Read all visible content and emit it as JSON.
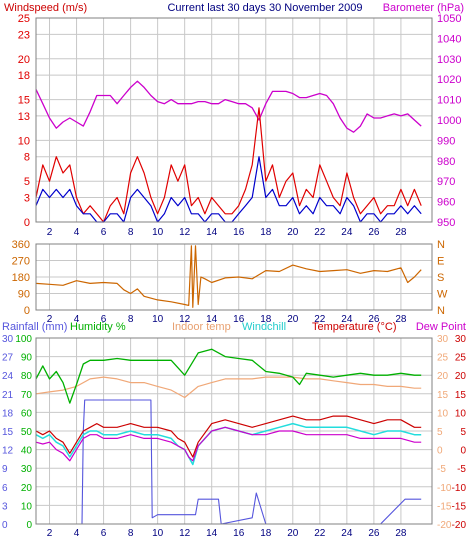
{
  "header": {
    "left_title": "Windspeed (m/s)",
    "center_title": "Current last 30 days 30 November 2009",
    "right_title": "Barometer (hPa)"
  },
  "legend_bottom": {
    "rainfall": "Rainfall (mm)",
    "humidity": "Humidity %",
    "indoor": "Indoor temp",
    "windchill": "Windchill",
    "temperature": "Temperature (°C)",
    "dewpoint": "Dew Point"
  },
  "colors": {
    "windspeed_max": "#e00000",
    "windspeed_avg": "#0000cc",
    "barometer": "#cc00cc",
    "wind_direction": "#cc6600",
    "rainfall": "#5555dd",
    "humidity": "#00b000",
    "indoor_temp": "#f0a878",
    "windchill": "#22dddd",
    "temperature": "#cc0000",
    "dew_point": "#cc00cc",
    "grid": "#c8c8c8",
    "axis_text_orange": "#cc6600"
  },
  "chart_data": [
    {
      "type": "line",
      "xlim": [
        1,
        30.3
      ],
      "x_ticks": [
        2,
        4,
        6,
        8,
        10,
        12,
        14,
        16,
        18,
        20,
        22,
        24,
        26,
        28
      ],
      "left_axis": {
        "label": "Windspeed (m/s)",
        "ticks": [
          0,
          3,
          5,
          8,
          10,
          13,
          15,
          18,
          20,
          23,
          25
        ],
        "ylim": [
          0,
          25
        ]
      },
      "right_axis": {
        "label": "Barometer (hPa)",
        "ticks": [
          950,
          960,
          970,
          980,
          990,
          1000,
          1010,
          1020,
          1030,
          1040,
          1050
        ],
        "ylim": [
          950,
          1050
        ]
      },
      "series": [
        {
          "name": "Barometer (hPa)",
          "axis": "right",
          "x": [
            1,
            1.5,
            2,
            2.5,
            3,
            3.5,
            4,
            4.5,
            5,
            5.5,
            6,
            6.5,
            7,
            7.5,
            8,
            8.5,
            9,
            9.5,
            10,
            10.5,
            11,
            11.5,
            12,
            12.5,
            13,
            13.5,
            14,
            14.5,
            15,
            15.5,
            16,
            16.5,
            17,
            17.5,
            18,
            18.5,
            19,
            19.5,
            20,
            20.5,
            21,
            21.5,
            22,
            22.5,
            23,
            23.5,
            24,
            24.5,
            25,
            25.5,
            26,
            26.5,
            27,
            27.5,
            28,
            28.5,
            29,
            29.5
          ],
          "values": [
            1015,
            1008,
            1001,
            996,
            999,
            1001,
            999,
            997,
            1004,
            1012,
            1012,
            1012,
            1008,
            1012,
            1016,
            1019,
            1016,
            1012,
            1009,
            1008,
            1010,
            1008,
            1008,
            1008,
            1009,
            1009,
            1008,
            1008,
            1010,
            1009,
            1008,
            1008,
            1006,
            1000,
            1008,
            1014,
            1014,
            1014,
            1013,
            1011,
            1011,
            1012,
            1013,
            1012,
            1008,
            1001,
            996,
            994,
            997,
            1003,
            1001,
            1001,
            1002,
            1003,
            1002,
            1003,
            1000,
            997
          ]
        },
        {
          "name": "Windspeed max",
          "axis": "left",
          "x": [
            1,
            1.5,
            2,
            2.5,
            3,
            3.5,
            4,
            4.5,
            5,
            5.5,
            6,
            6.5,
            7,
            7.5,
            8,
            8.5,
            9,
            9.5,
            10,
            10.5,
            11,
            11.5,
            12,
            12.5,
            13,
            13.5,
            14,
            14.5,
            15,
            15.5,
            16,
            16.5,
            17,
            17.5,
            18,
            18.5,
            19,
            19.5,
            20,
            20.5,
            21,
            21.5,
            22,
            22.5,
            23,
            23.5,
            24,
            24.5,
            25,
            25.5,
            26,
            26.5,
            27,
            27.5,
            28,
            28.5,
            29,
            29.5
          ],
          "values": [
            3,
            7,
            5,
            8,
            6,
            7,
            3,
            1,
            2,
            1,
            0,
            2,
            3,
            1,
            6,
            8,
            6,
            3,
            1,
            3,
            7,
            5,
            7,
            2,
            3,
            1,
            3,
            2,
            1,
            1,
            2,
            4,
            7,
            14,
            5,
            7,
            3,
            5,
            6,
            2,
            4,
            3,
            7,
            5,
            3,
            2,
            6,
            3,
            1,
            2,
            3,
            1,
            2,
            2,
            4,
            2,
            4,
            2
          ]
        },
        {
          "name": "Windspeed avg",
          "axis": "left",
          "x": [
            1,
            1.5,
            2,
            2.5,
            3,
            3.5,
            4,
            4.5,
            5,
            5.5,
            6,
            6.5,
            7,
            7.5,
            8,
            8.5,
            9,
            9.5,
            10,
            10.5,
            11,
            11.5,
            12,
            12.5,
            13,
            13.5,
            14,
            14.5,
            15,
            15.5,
            16,
            16.5,
            17,
            17.5,
            18,
            18.5,
            19,
            19.5,
            20,
            20.5,
            21,
            21.5,
            22,
            22.5,
            23,
            23.5,
            24,
            24.5,
            25,
            25.5,
            26,
            26.5,
            27,
            27.5,
            28,
            28.5,
            29,
            29.5
          ],
          "values": [
            2,
            4,
            3,
            4,
            3,
            4,
            2,
            1,
            1,
            0,
            0,
            1,
            1,
            0,
            3,
            4,
            3,
            2,
            0,
            1,
            3,
            2,
            3,
            1,
            1,
            0,
            1,
            1,
            0,
            0,
            1,
            2,
            3,
            8,
            3,
            4,
            2,
            2,
            3,
            1,
            2,
            1,
            3,
            2,
            2,
            1,
            3,
            2,
            0,
            1,
            1,
            0,
            1,
            1,
            2,
            1,
            2,
            1
          ]
        }
      ]
    },
    {
      "type": "line",
      "xlim": [
        1,
        30.3
      ],
      "x_ticks": [
        2,
        4,
        6,
        8,
        10,
        12,
        14,
        16,
        18,
        20,
        22,
        24,
        26,
        28
      ],
      "left_axis": {
        "ticks": [
          0,
          90,
          180,
          270,
          360
        ],
        "ylim": [
          0,
          360
        ]
      },
      "right_axis": {
        "ticks": [
          "N",
          "W",
          "S",
          "E",
          "N"
        ]
      },
      "series": [
        {
          "name": "Wind direction",
          "x": [
            1,
            2,
            3,
            4,
            5,
            6,
            7,
            7.5,
            8,
            8.5,
            9,
            10,
            11,
            12,
            12.3,
            12.5,
            12.6,
            12.8,
            13,
            13.2,
            13.5,
            14,
            15,
            16,
            17,
            18,
            19,
            20,
            21,
            22,
            23,
            24,
            25,
            26,
            27,
            28,
            28.5,
            29,
            29.5
          ],
          "values": [
            145,
            140,
            135,
            160,
            145,
            150,
            145,
            110,
            90,
            115,
            75,
            55,
            45,
            30,
            25,
            350,
            15,
            350,
            30,
            180,
            170,
            150,
            175,
            180,
            170,
            215,
            210,
            245,
            225,
            210,
            215,
            220,
            200,
            215,
            210,
            230,
            150,
            180,
            220
          ]
        }
      ]
    },
    {
      "type": "line",
      "xlim": [
        1,
        30.3
      ],
      "x_ticks": [
        2,
        4,
        6,
        8,
        10,
        12,
        14,
        16,
        18,
        20,
        22,
        24,
        26,
        28
      ],
      "rain_axis": {
        "label": "Rainfall (mm)",
        "ticks": [
          0,
          3,
          6,
          9,
          12,
          15,
          18,
          21,
          24,
          27,
          30
        ],
        "ylim": [
          0,
          30
        ]
      },
      "humidity_axis": {
        "label": "Humidity %",
        "ticks": [
          0,
          10,
          20,
          30,
          40,
          50,
          60,
          70,
          80,
          90,
          100
        ],
        "ylim": [
          0,
          100
        ]
      },
      "temp_axis": {
        "label": "Temperature (°C)",
        "ticks": [
          -20,
          -15,
          -10,
          -5,
          0,
          5,
          10,
          15,
          20,
          25,
          30
        ],
        "ylim": [
          -20,
          30
        ]
      },
      "series": [
        {
          "name": "Rainfall (mm)",
          "axis": "rain",
          "x": [
            1,
            4.4,
            4.5,
            4.6,
            5,
            9.5,
            9.6,
            10,
            11,
            11.3,
            12,
            12.8,
            13,
            14.5,
            14.7,
            17,
            17.3,
            18,
            26.5,
            28.3,
            28.5,
            29.5
          ],
          "values": [
            0,
            0,
            15,
            20,
            20,
            20,
            1,
            1.5,
            1.5,
            1.5,
            1.5,
            1.5,
            4,
            4,
            0,
            1,
            5,
            0,
            0,
            4,
            4,
            4
          ]
        },
        {
          "name": "Humidity %",
          "axis": "humidity",
          "x": [
            1,
            1.5,
            2,
            2.5,
            3,
            3.5,
            4,
            4.5,
            5,
            6,
            7,
            8,
            9,
            10,
            11,
            12,
            13,
            14,
            15,
            16,
            17,
            18,
            19,
            20,
            20.5,
            21,
            22,
            23,
            24,
            25,
            26,
            27,
            28,
            29,
            29.5
          ],
          "values": [
            78,
            85,
            78,
            82,
            76,
            65,
            75,
            86,
            88,
            88,
            89,
            88,
            88,
            88,
            88,
            80,
            92,
            94,
            90,
            89,
            88,
            82,
            81,
            79,
            75,
            81,
            80,
            79,
            80,
            81,
            80,
            80,
            81,
            80,
            80
          ]
        },
        {
          "name": "Indoor temp",
          "axis": "temp",
          "x": [
            1,
            2,
            3,
            4,
            5,
            6,
            7,
            8,
            9,
            10,
            11,
            12,
            13,
            14,
            15,
            16,
            17,
            18,
            19,
            20,
            21,
            22,
            23,
            24,
            25,
            26,
            27,
            28,
            29,
            29.5
          ],
          "values": [
            15,
            15.5,
            16,
            17,
            19,
            19.5,
            19,
            18,
            18,
            17,
            16,
            14,
            17,
            18,
            19,
            19,
            19,
            19.5,
            19.5,
            19.5,
            19,
            19,
            18.5,
            18,
            17.5,
            17.5,
            17,
            17,
            16.5,
            16.5
          ]
        },
        {
          "name": "Temperature (°C)",
          "axis": "temp",
          "x": [
            1,
            1.5,
            2,
            2.5,
            3,
            3.5,
            4,
            4.5,
            5,
            5.5,
            6,
            7,
            8,
            9,
            10,
            11,
            11.5,
            12,
            12.3,
            12.6,
            13,
            14,
            15,
            16,
            17,
            18,
            19,
            20,
            21,
            22,
            23,
            24,
            25,
            26,
            27,
            28,
            29,
            29.5
          ],
          "values": [
            5,
            4,
            5,
            3,
            2,
            -1,
            2,
            5,
            6,
            7,
            6,
            6,
            7,
            6,
            6,
            5,
            3,
            2,
            0,
            -2,
            2,
            7,
            8,
            7,
            6,
            7,
            8,
            9,
            8,
            8,
            9,
            9,
            8,
            7,
            8,
            8,
            6,
            6
          ]
        },
        {
          "name": "Windchill",
          "axis": "temp",
          "x": [
            1,
            1.5,
            2,
            2.5,
            3,
            3.5,
            4,
            4.5,
            5,
            5.5,
            6,
            7,
            8,
            9,
            10,
            11,
            11.5,
            12,
            12.3,
            12.6,
            13,
            14,
            15,
            16,
            17,
            18,
            19,
            20,
            21,
            22,
            23,
            24,
            25,
            26,
            27,
            28,
            29,
            29.5
          ],
          "values": [
            4,
            3,
            4,
            2,
            1,
            -2,
            1,
            4,
            5,
            5,
            4,
            4,
            5,
            4,
            4,
            3,
            1,
            0,
            -2,
            -4,
            1,
            5,
            6,
            5,
            4,
            5,
            6,
            7,
            6,
            6,
            6,
            6,
            5,
            4,
            5,
            5,
            4,
            4
          ]
        },
        {
          "name": "Dew Point",
          "axis": "temp",
          "x": [
            1,
            1.5,
            2,
            2.5,
            3,
            3.5,
            4,
            4.5,
            5,
            5.5,
            6,
            7,
            8,
            9,
            10,
            11,
            11.5,
            12,
            12.3,
            12.6,
            13,
            14,
            15,
            16,
            17,
            18,
            19,
            20,
            21,
            22,
            23,
            24,
            25,
            26,
            27,
            28,
            29,
            29.5
          ],
          "values": [
            2,
            1.5,
            2,
            0,
            -1,
            -3,
            0,
            3,
            4,
            4,
            3,
            3,
            4,
            3,
            3,
            2,
            1,
            0,
            -2,
            -3,
            1,
            5,
            6,
            5,
            4,
            4,
            5,
            5,
            4,
            4,
            4,
            4,
            3,
            3,
            3,
            3,
            2,
            2
          ]
        }
      ]
    }
  ]
}
